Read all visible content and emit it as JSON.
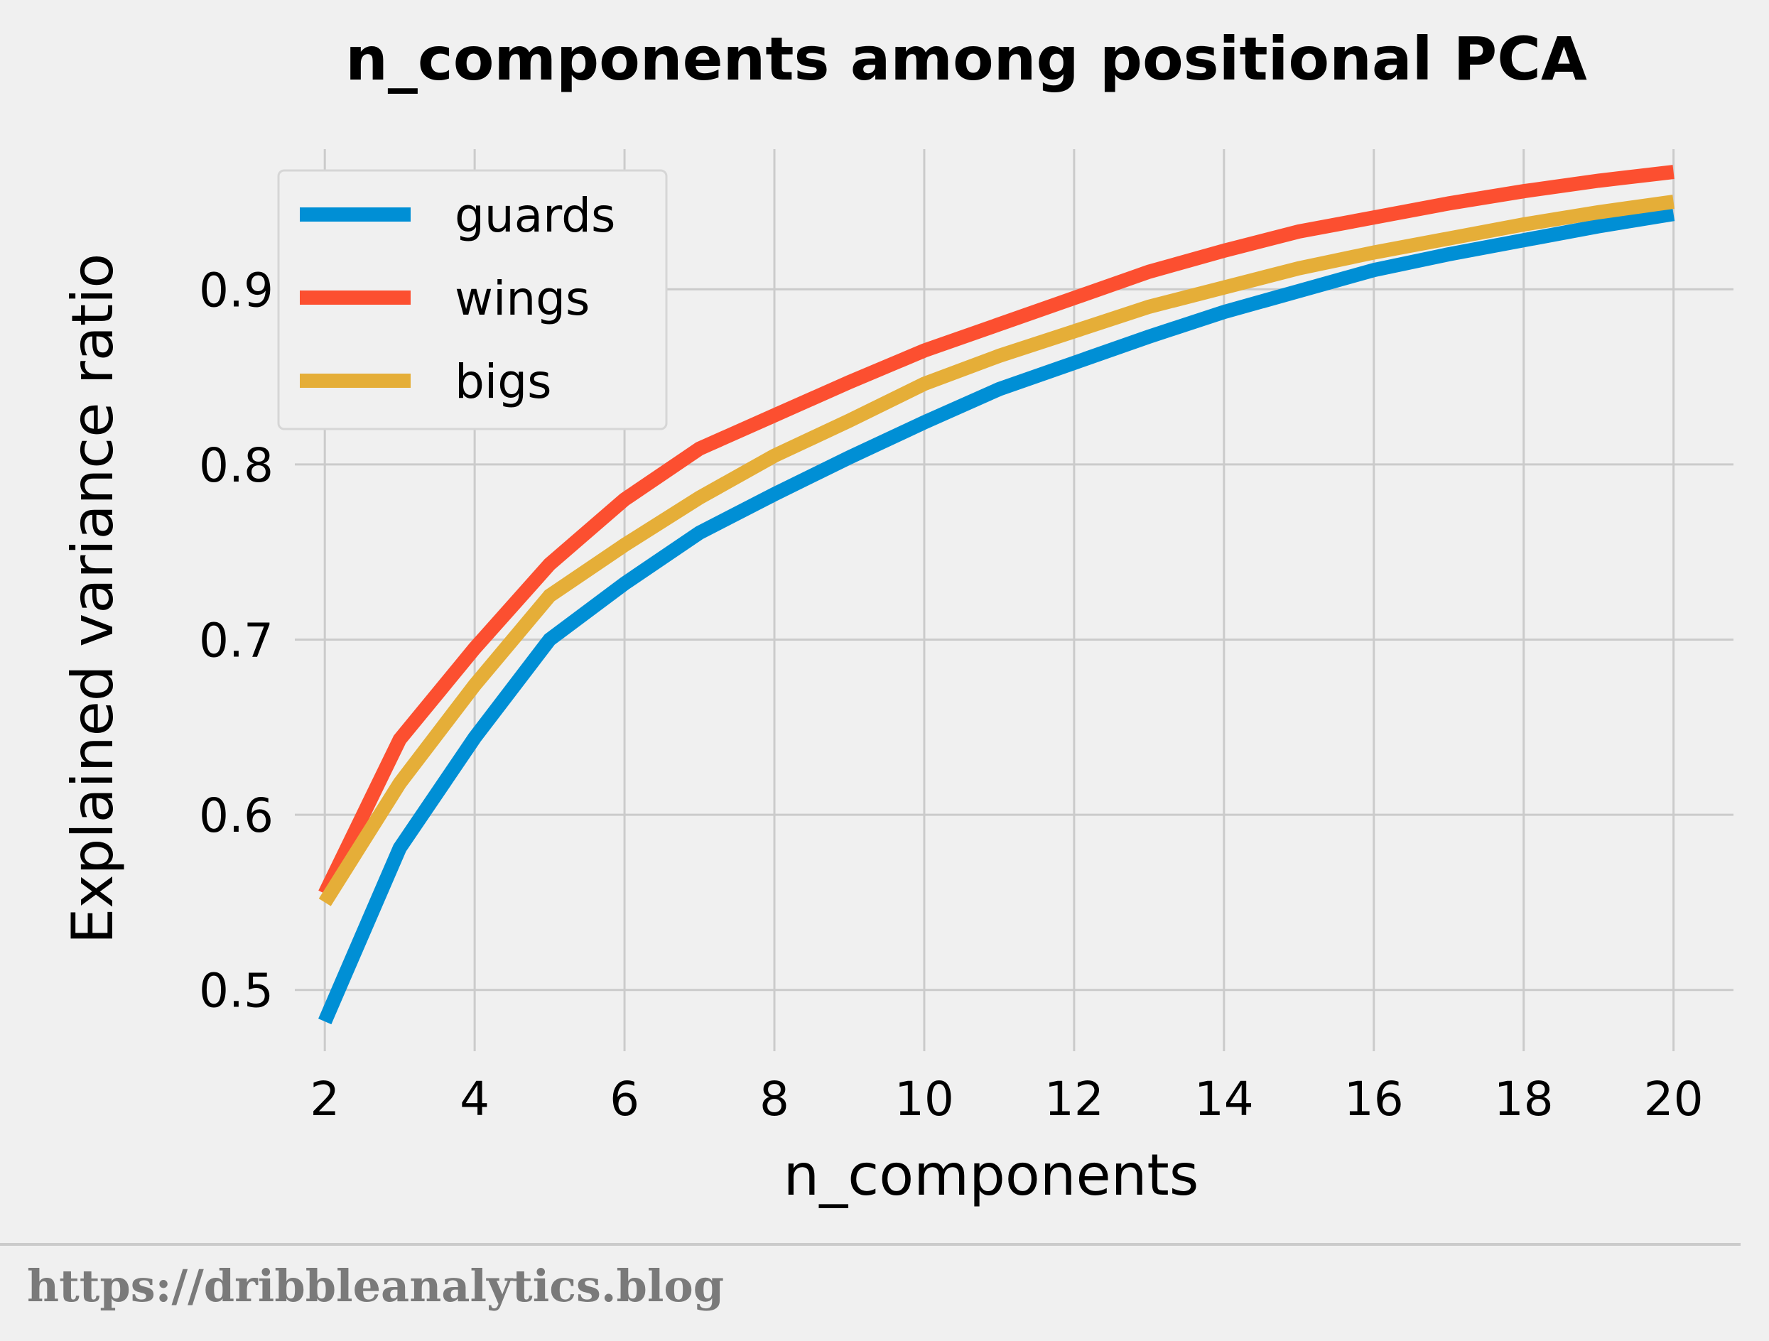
{
  "chart_data": {
    "type": "line",
    "title": "n_components among positional PCA",
    "xlabel": "n_components",
    "ylabel": "Explained variance ratio",
    "xlim": [
      1.6,
      20.8
    ],
    "ylim": [
      0.465,
      0.98
    ],
    "xticks": [
      2,
      4,
      6,
      8,
      10,
      12,
      14,
      16,
      18,
      20
    ],
    "yticks": [
      0.5,
      0.6,
      0.7,
      0.8,
      0.9
    ],
    "xtick_labels": [
      "2",
      "4",
      "6",
      "8",
      "10",
      "12",
      "14",
      "16",
      "18",
      "20"
    ],
    "ytick_labels": [
      "0.5",
      "0.6",
      "0.7",
      "0.8",
      "0.9"
    ],
    "grid": true,
    "legend_position": "top-left",
    "x": [
      2,
      3,
      4,
      5,
      6,
      7,
      8,
      9,
      10,
      11,
      12,
      13,
      14,
      15,
      16,
      17,
      18,
      19,
      20
    ],
    "series": [
      {
        "name": "guards",
        "color": "#008fd5",
        "values": [
          0.482,
          0.581,
          0.644,
          0.7,
          0.732,
          0.761,
          0.783,
          0.804,
          0.824,
          0.843,
          0.858,
          0.873,
          0.887,
          0.899,
          0.911,
          0.92,
          0.928,
          0.936,
          0.943
        ]
      },
      {
        "name": "wings",
        "color": "#fc4f30",
        "values": [
          0.555,
          0.643,
          0.695,
          0.743,
          0.78,
          0.809,
          0.828,
          0.847,
          0.865,
          0.88,
          0.895,
          0.91,
          0.922,
          0.933,
          0.941,
          0.949,
          0.956,
          0.962,
          0.967
        ]
      },
      {
        "name": "bigs",
        "color": "#e5ae38",
        "values": [
          0.55,
          0.618,
          0.674,
          0.725,
          0.754,
          0.781,
          0.805,
          0.825,
          0.846,
          0.862,
          0.876,
          0.89,
          0.901,
          0.912,
          0.921,
          0.929,
          0.937,
          0.944,
          0.95
        ]
      }
    ],
    "colors": {
      "background": "#f0f0f0",
      "grid": "#cbcbcb",
      "footer_text": "#7a7a7a"
    }
  },
  "footer": {
    "source_text": "https://dribbleanalytics.blog"
  }
}
